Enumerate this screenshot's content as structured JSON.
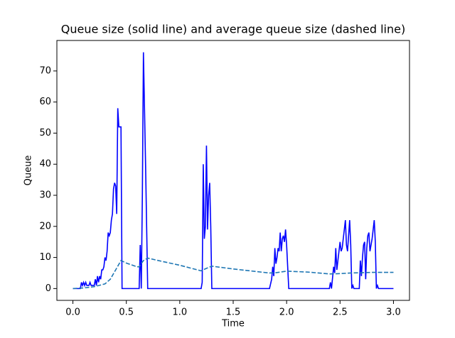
{
  "chart_data": {
    "type": "line",
    "title": "Queue size (solid line) and average queue size (dashed line)",
    "xlabel": "Time",
    "ylabel": "Queue",
    "xlim": [
      -0.15,
      3.15
    ],
    "ylim": [
      -3.8,
      79.8
    ],
    "xticks": [
      {
        "value": 0,
        "label": "0.0"
      },
      0.5,
      {
        "value": 1,
        "label": "1.0"
      },
      1.5,
      {
        "value": 2,
        "label": "2.0"
      },
      2.5,
      {
        "value": 3,
        "label": "3.0"
      }
    ],
    "yticks": [
      0,
      10,
      20,
      30,
      40,
      50,
      60,
      70
    ],
    "grid": false,
    "series": [
      {
        "color": "#0000ff",
        "dashed": false,
        "x": [
          0,
          0.07,
          0.08,
          0.09,
          0.1,
          0.11,
          0.12,
          0.13,
          0.15,
          0.16,
          0.17,
          0.2,
          0.21,
          0.22,
          0.23,
          0.24,
          0.25,
          0.26,
          0.27,
          0.28,
          0.29,
          0.3,
          0.31,
          0.32,
          0.33,
          0.34,
          0.35,
          0.36,
          0.37,
          0.38,
          0.39,
          0.4,
          0.41,
          0.42,
          0.43,
          0.45,
          0.46,
          0.62,
          0.63,
          0.64,
          0.65,
          0.66,
          0.68,
          0.7,
          1.2,
          1.21,
          1.22,
          1.23,
          1.24,
          1.25,
          1.26,
          1.27,
          1.28,
          1.29,
          1.3,
          1.84,
          1.86,
          1.87,
          1.88,
          1.89,
          1.9,
          1.91,
          1.92,
          1.93,
          1.94,
          1.95,
          1.96,
          1.97,
          1.98,
          1.99,
          2.0,
          2.02,
          2.4,
          2.41,
          2.42,
          2.44,
          2.45,
          2.46,
          2.47,
          2.48,
          2.49,
          2.5,
          2.51,
          2.52,
          2.53,
          2.55,
          2.56,
          2.57,
          2.59,
          2.6,
          2.61,
          2.62,
          2.63,
          2.68,
          2.69,
          2.7,
          2.71,
          2.72,
          2.73,
          2.74,
          2.75,
          2.76,
          2.77,
          2.78,
          2.79,
          2.8,
          2.82,
          2.83,
          2.84,
          2.85,
          2.86,
          3.0
        ],
        "values": [
          0,
          0,
          2,
          1,
          2,
          1,
          2,
          1,
          1,
          2,
          1,
          1,
          3,
          1,
          4,
          2,
          4,
          3,
          6,
          6,
          7,
          10,
          9,
          12,
          18,
          17,
          18,
          22,
          24,
          32,
          34,
          33,
          24,
          58,
          52,
          52,
          0,
          0,
          14,
          0,
          30,
          76,
          40,
          0,
          0,
          2,
          40,
          16,
          20,
          46,
          19,
          30,
          34,
          20,
          0,
          0,
          3,
          7,
          4,
          13,
          8,
          10,
          13,
          12,
          18,
          12,
          16,
          17,
          15,
          19,
          14,
          0,
          0,
          2,
          0,
          7,
          5,
          13,
          6,
          9,
          12,
          15,
          12,
          13,
          16,
          22,
          14,
          12,
          22,
          14,
          0,
          1,
          0,
          0,
          9,
          4,
          10,
          14,
          15,
          3,
          13,
          17,
          18,
          12,
          14,
          16,
          22,
          15,
          0,
          1,
          0,
          0
        ]
      },
      {
        "color": "#1f77b4",
        "dashed": true,
        "x": [
          0,
          0.1,
          0.2,
          0.3,
          0.35,
          0.4,
          0.45,
          0.5,
          0.6,
          0.62,
          0.66,
          0.7,
          0.8,
          1.0,
          1.2,
          1.25,
          1.3,
          1.5,
          1.84,
          1.9,
          2.0,
          2.2,
          2.4,
          2.5,
          2.6,
          2.8,
          3.0
        ],
        "values": [
          0,
          0.2,
          0.6,
          1.5,
          3,
          6,
          9,
          8.2,
          7,
          7,
          9,
          9.8,
          9,
          7.5,
          5.7,
          6.5,
          7.2,
          6.3,
          5,
          5.1,
          5.6,
          5.3,
          4.7,
          4.8,
          5,
          5.2,
          5.2
        ]
      }
    ]
  }
}
